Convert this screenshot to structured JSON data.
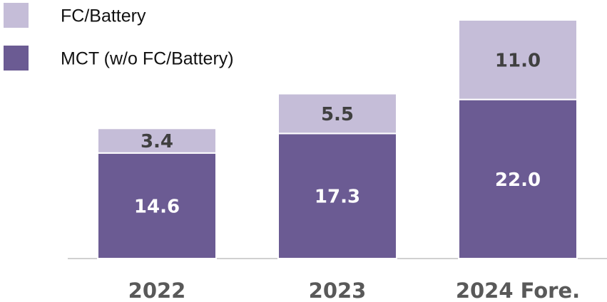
{
  "chart_data": {
    "type": "stacked_bar",
    "categories": [
      "2022",
      "2023",
      "2024 Fore."
    ],
    "series": [
      {
        "name": "MCT (w/o FC/Battery)",
        "color": "#6b5b93",
        "values": [
          14.6,
          17.3,
          22.0
        ],
        "value_labels": [
          "14.6",
          "17.3",
          "22.0"
        ],
        "label_color": "#ffffff"
      },
      {
        "name": "FC/Battery",
        "color": "#c5bdd8",
        "values": [
          3.4,
          5.5,
          11.0
        ],
        "value_labels": [
          "3.4",
          "5.5",
          "11.0"
        ],
        "label_color": "#404040"
      }
    ]
  }
}
